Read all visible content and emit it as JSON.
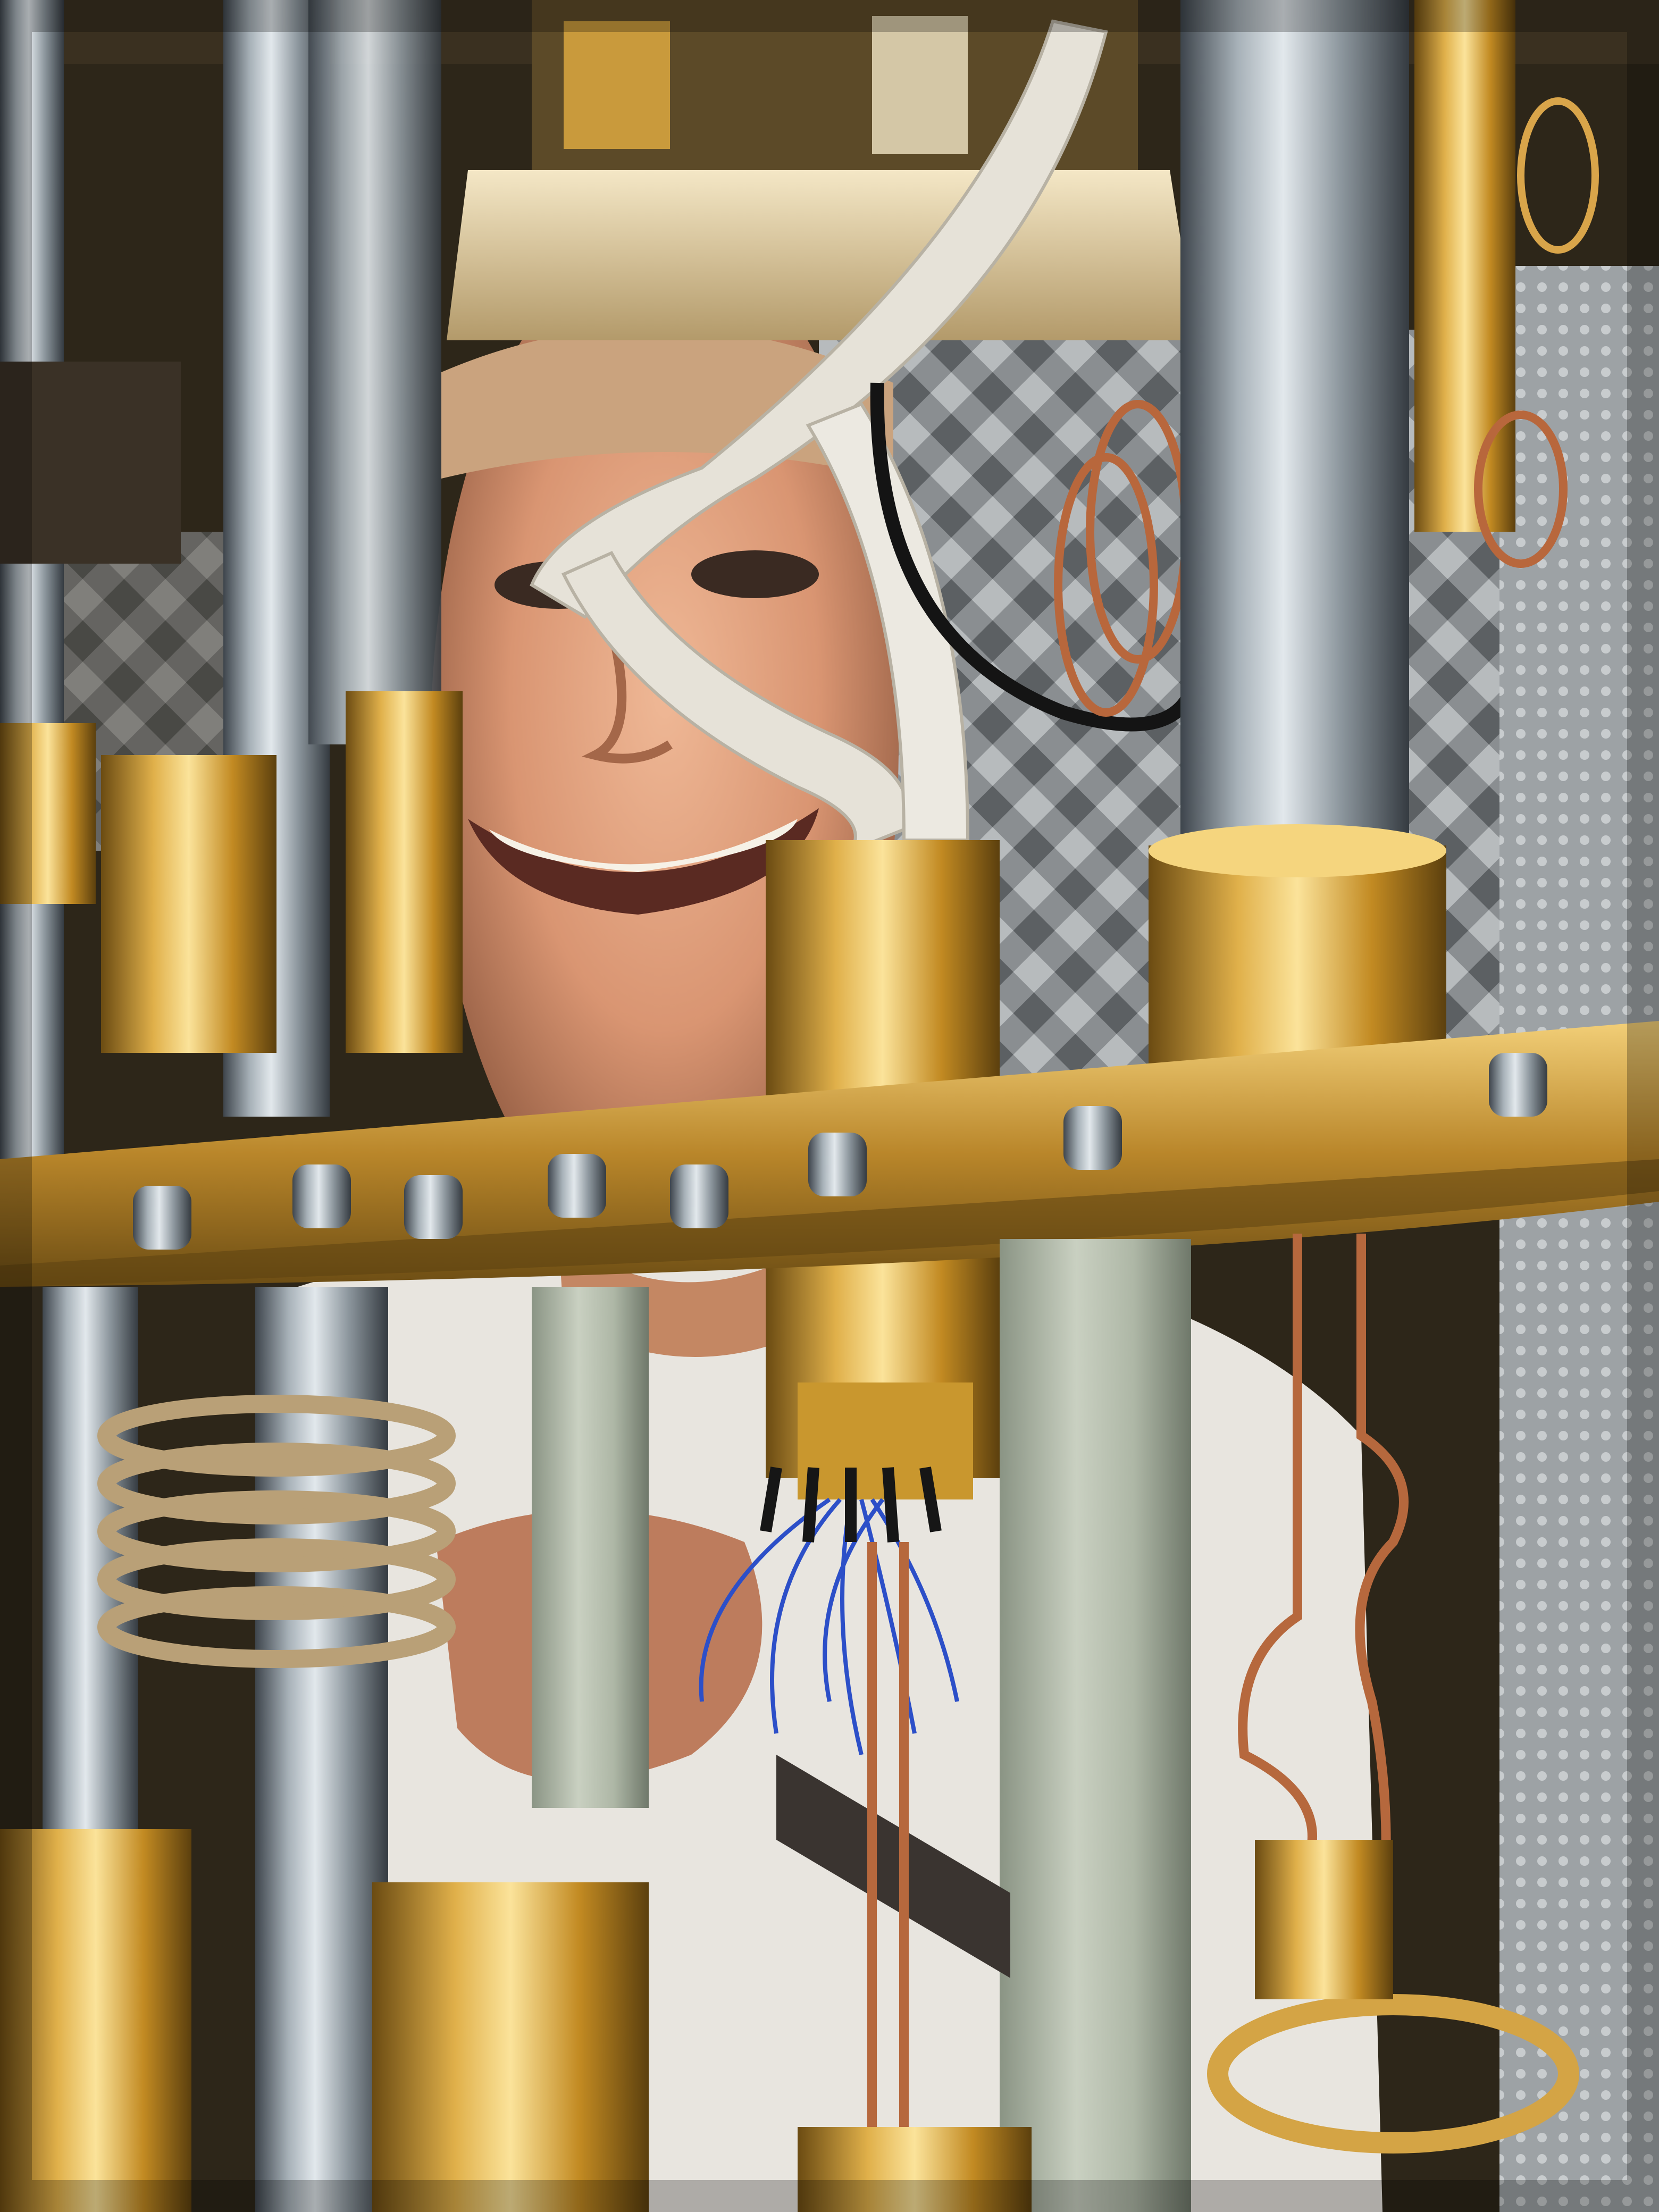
{
  "image": {
    "kind": "photograph",
    "subject": "person-behind-dilution-refrigerator-stages",
    "colors": {
      "gold": "#c9972e",
      "gold_light": "#f3d27a",
      "gold_dark": "#7a5a18",
      "steel": "#8f9aa2",
      "steel_light": "#d5dde2",
      "steel_dark": "#4a525a",
      "copper": "#b0643a",
      "blue_wire": "#2b4fc4",
      "ribbon_cable": "#e4e1da",
      "skin": "#d89a76",
      "shirt": "#e9e6e0",
      "foam": "#7b7f83",
      "shadow": "#1c1812"
    }
  }
}
